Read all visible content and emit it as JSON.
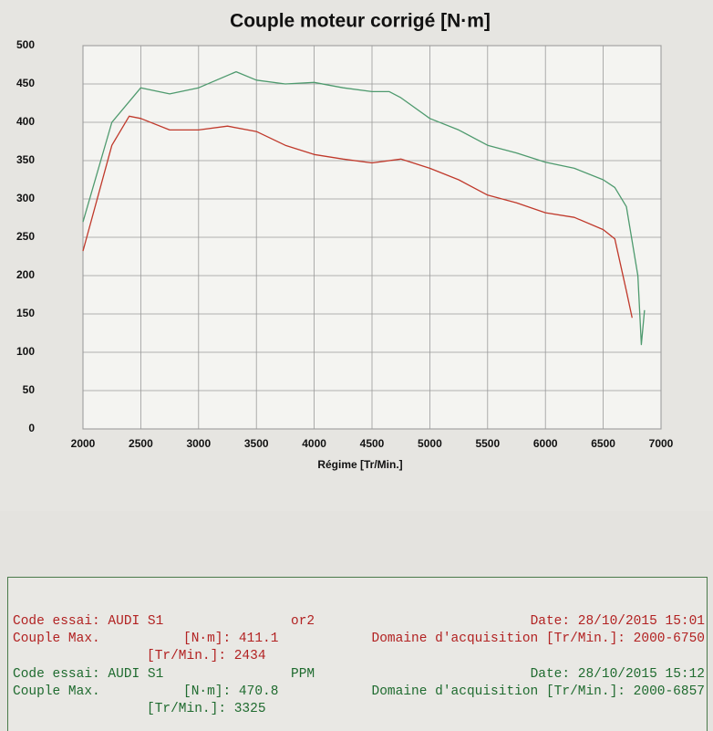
{
  "chart_data": {
    "type": "line",
    "title": "Couple moteur corrigé [N·m]",
    "x_label": "Régime [Tr/Min.]",
    "xlim": [
      2000,
      7000
    ],
    "xticks": [
      2000,
      2500,
      3000,
      3500,
      4000,
      4500,
      5000,
      5500,
      6000,
      6500,
      7000
    ],
    "ylim": [
      0,
      500
    ],
    "yticks": [
      0,
      50,
      100,
      150,
      200,
      250,
      300,
      350,
      400,
      450,
      500
    ],
    "grid": true,
    "series": [
      {
        "color": "#c0392b",
        "x": [
          2000,
          2250,
          2400,
          2500,
          2750,
          3000,
          3250,
          3500,
          3750,
          4000,
          4250,
          4500,
          4750,
          5000,
          5250,
          5500,
          5750,
          6000,
          6250,
          6500,
          6600,
          6700,
          6750
        ],
        "values": [
          232,
          370,
          408,
          405,
          390,
          390,
          395,
          388,
          370,
          358,
          352,
          347,
          352,
          340,
          325,
          305,
          295,
          282,
          276,
          260,
          248,
          180,
          145
        ]
      },
      {
        "color": "#4e9a6e",
        "x": [
          2000,
          2250,
          2500,
          2750,
          3000,
          3325,
          3500,
          3750,
          4000,
          4250,
          4500,
          4650,
          4750,
          5000,
          5250,
          5500,
          5750,
          6000,
          6250,
          6500,
          6600,
          6700,
          6800,
          6830,
          6857
        ],
        "values": [
          270,
          400,
          445,
          437,
          445,
          466,
          455,
          450,
          452,
          445,
          440,
          440,
          432,
          405,
          390,
          370,
          360,
          348,
          340,
          325,
          315,
          290,
          200,
          110,
          155
        ]
      }
    ]
  },
  "info": {
    "tests": [
      {
        "color": "#b22222",
        "code": "Code essai: AUDI S1",
        "tag": "or2",
        "date": "Date: 28/10/2015 15:01",
        "couple": "Couple Max.",
        "nm": "[N·m]: 411.1",
        "domain": "Domaine d'acquisition [Tr/Min.]: 2000-6750",
        "rpm": "[Tr/Min.]: 2434"
      },
      {
        "color": "#1f6b2f",
        "code": "Code essai: AUDI S1",
        "tag": "PPM",
        "date": "Date: 28/10/2015 15:12",
        "couple": "Couple Max.",
        "nm": "[N·m]: 470.8",
        "domain": "Domaine d'acquisition [Tr/Min.]: 2000-6857",
        "rpm": "[Tr/Min.]: 3325"
      }
    ]
  }
}
